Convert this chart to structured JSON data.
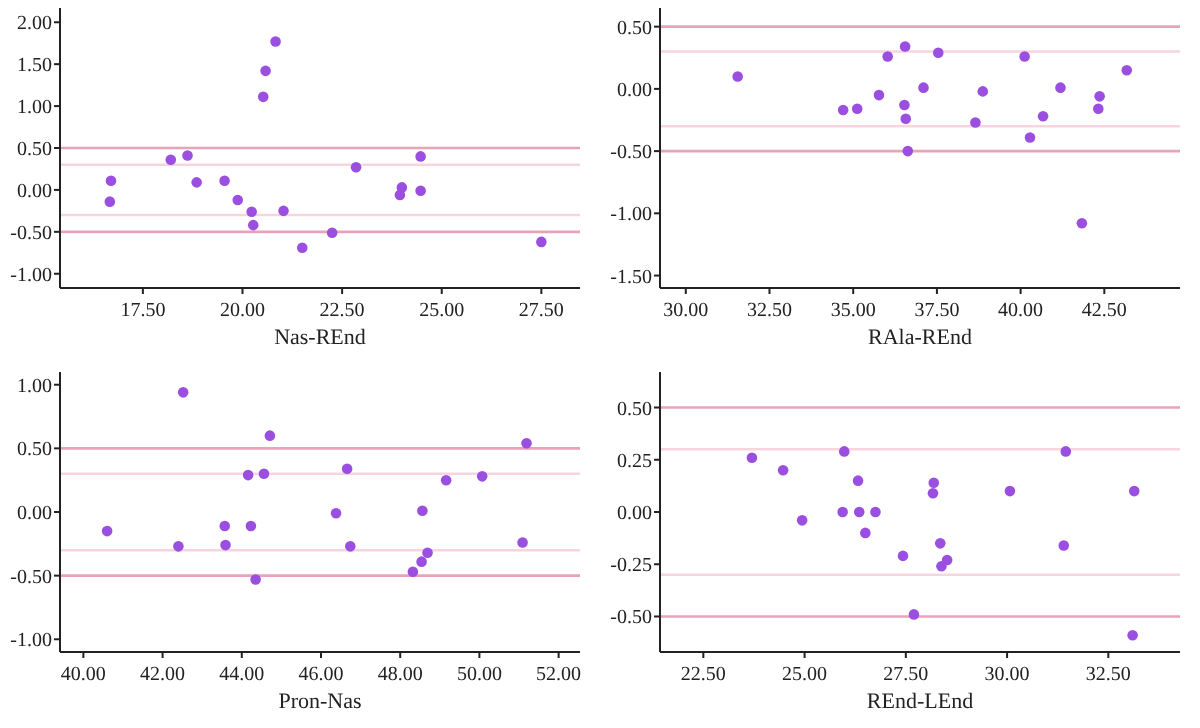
{
  "chart_data": [
    {
      "type": "scatter",
      "xlabel": "Nas-REnd",
      "marker": "circle",
      "grid": false,
      "xlim": [
        15.42,
        28.47
      ],
      "ylim": [
        -1.17,
        2.17
      ],
      "xticks": [
        {
          "value": 17.5,
          "label": "17.50"
        },
        {
          "value": 20,
          "label": "20.00"
        },
        {
          "value": 22.5,
          "label": "22.50"
        },
        {
          "value": 25,
          "label": "25.00"
        },
        {
          "value": 27.5,
          "label": "27.50"
        }
      ],
      "yticks": [
        {
          "value": -1,
          "label": "-1.00"
        },
        {
          "value": -0.5,
          "label": "-0.50"
        },
        {
          "value": 0,
          "label": "0.00"
        },
        {
          "value": 0.5,
          "label": "0.50"
        },
        {
          "value": 1,
          "label": "1.00"
        },
        {
          "value": 1.5,
          "label": "1.50"
        },
        {
          "value": 2,
          "label": "2.00"
        }
      ],
      "ref_lines": [
        {
          "axis": "y",
          "value": 0.5,
          "color": "#e9a3b8"
        },
        {
          "axis": "y",
          "value": 0.3,
          "color": "#f6d5df"
        },
        {
          "axis": "y",
          "value": -0.3,
          "color": "#f6d5df"
        },
        {
          "axis": "y",
          "value": -0.5,
          "color": "#e9a3b8"
        }
      ],
      "series": [
        {
          "color": "#9b4fe0",
          "x": [
            16.7,
            16.67,
            18.2,
            18.62,
            18.85,
            19.55,
            19.88,
            20.23,
            20.27,
            20.52,
            20.58,
            20.83,
            21.03,
            21.5,
            22.25,
            22.85,
            23.95,
            24.0,
            24.47,
            24.47,
            27.5
          ],
          "values": [
            0.11,
            -0.14,
            0.36,
            0.41,
            0.09,
            0.11,
            -0.12,
            -0.26,
            -0.42,
            1.11,
            1.42,
            1.77,
            -0.25,
            -0.69,
            -0.51,
            0.27,
            -0.06,
            0.03,
            0.4,
            -0.01,
            -0.62
          ]
        }
      ]
    },
    {
      "type": "scatter",
      "xlabel": "RAla-REnd",
      "marker": "circle",
      "grid": false,
      "xlim": [
        29.23,
        44.76
      ],
      "ylim": [
        -1.6,
        0.65
      ],
      "xticks": [
        {
          "value": 30,
          "label": "30.00"
        },
        {
          "value": 32.5,
          "label": "32.50"
        },
        {
          "value": 35,
          "label": "35.00"
        },
        {
          "value": 37.5,
          "label": "37.50"
        },
        {
          "value": 40,
          "label": "40.00"
        },
        {
          "value": 42.5,
          "label": "42.50"
        }
      ],
      "yticks": [
        {
          "value": -1.5,
          "label": "-1.50"
        },
        {
          "value": -1,
          "label": "-1.00"
        },
        {
          "value": -0.5,
          "label": "-0.50"
        },
        {
          "value": 0,
          "label": "0.00"
        },
        {
          "value": 0.5,
          "label": "0.50"
        }
      ],
      "ref_lines": [
        {
          "axis": "y",
          "value": 0.5,
          "color": "#e9a3b8"
        },
        {
          "axis": "y",
          "value": 0.3,
          "color": "#f6d5df"
        },
        {
          "axis": "y",
          "value": -0.3,
          "color": "#f6d5df"
        },
        {
          "axis": "y",
          "value": -0.5,
          "color": "#e9a3b8"
        }
      ],
      "series": [
        {
          "color": "#9b4fe0",
          "x": [
            31.55,
            34.7,
            35.12,
            35.77,
            36.03,
            36.53,
            36.55,
            36.57,
            36.63,
            37.1,
            37.54,
            38.65,
            38.87,
            40.12,
            40.28,
            40.67,
            41.19,
            41.83,
            42.32,
            42.36,
            43.17
          ],
          "values": [
            0.1,
            -0.17,
            -0.16,
            -0.05,
            0.26,
            -0.13,
            0.34,
            -0.24,
            -0.5,
            0.01,
            0.29,
            -0.27,
            -0.02,
            0.26,
            -0.39,
            -0.22,
            0.01,
            -1.08,
            -0.16,
            -0.06,
            0.15
          ]
        }
      ]
    },
    {
      "type": "scatter",
      "xlabel": "Pron-Nas",
      "marker": "circle",
      "grid": false,
      "xlim": [
        39.41,
        52.54
      ],
      "ylim": [
        -1.1,
        1.1
      ],
      "xticks": [
        {
          "value": 40,
          "label": "40.00"
        },
        {
          "value": 42,
          "label": "42.00"
        },
        {
          "value": 44,
          "label": "44.00"
        },
        {
          "value": 46,
          "label": "46.00"
        },
        {
          "value": 48,
          "label": "48.00"
        },
        {
          "value": 50,
          "label": "50.00"
        },
        {
          "value": 52,
          "label": "52.00"
        }
      ],
      "yticks": [
        {
          "value": -1,
          "label": "-1.00"
        },
        {
          "value": -0.5,
          "label": "-0.50"
        },
        {
          "value": 0,
          "label": "0.00"
        },
        {
          "value": 0.5,
          "label": "0.50"
        },
        {
          "value": 1,
          "label": "1.00"
        }
      ],
      "ref_lines": [
        {
          "axis": "y",
          "value": 0.5,
          "color": "#e9a3b8"
        },
        {
          "axis": "y",
          "value": 0.3,
          "color": "#f6d5df"
        },
        {
          "axis": "y",
          "value": -0.3,
          "color": "#f6d5df"
        },
        {
          "axis": "y",
          "value": -0.5,
          "color": "#e9a3b8"
        }
      ],
      "series": [
        {
          "color": "#9b4fe0",
          "x": [
            40.6,
            42.4,
            42.52,
            43.57,
            43.59,
            44.16,
            44.23,
            44.35,
            44.56,
            44.71,
            46.38,
            46.66,
            46.74,
            48.32,
            48.54,
            48.56,
            48.69,
            49.16,
            50.07,
            51.09,
            51.19
          ],
          "values": [
            -0.15,
            -0.27,
            0.94,
            -0.11,
            -0.26,
            0.29,
            -0.11,
            -0.53,
            0.3,
            0.6,
            -0.01,
            0.34,
            -0.27,
            -0.47,
            -0.39,
            0.01,
            -0.32,
            0.25,
            0.28,
            -0.24,
            0.54
          ]
        }
      ]
    },
    {
      "type": "scatter",
      "xlabel": "REnd-LEnd",
      "marker": "circle",
      "grid": false,
      "xlim": [
        21.43,
        34.27
      ],
      "ylim": [
        -0.67,
        0.67
      ],
      "xticks": [
        {
          "value": 22.5,
          "label": "22.50"
        },
        {
          "value": 25,
          "label": "25.00"
        },
        {
          "value": 27.5,
          "label": "27.50"
        },
        {
          "value": 30,
          "label": "30.00"
        },
        {
          "value": 32.5,
          "label": "32.50"
        }
      ],
      "yticks": [
        {
          "value": -0.5,
          "label": "-0.50"
        },
        {
          "value": -0.25,
          "label": "-0.25"
        },
        {
          "value": 0,
          "label": "0.00"
        },
        {
          "value": 0.25,
          "label": "0.25"
        },
        {
          "value": 0.5,
          "label": "0.50"
        }
      ],
      "ref_lines": [
        {
          "axis": "y",
          "value": 0.5,
          "color": "#e9a3b8"
        },
        {
          "axis": "y",
          "value": 0.3,
          "color": "#f6d5df"
        },
        {
          "axis": "y",
          "value": -0.3,
          "color": "#f6d5df"
        },
        {
          "axis": "y",
          "value": -0.5,
          "color": "#e9a3b8"
        }
      ],
      "series": [
        {
          "color": "#9b4fe0",
          "x": [
            23.7,
            24.47,
            24.94,
            25.94,
            25.98,
            26.32,
            26.35,
            26.5,
            26.75,
            27.43,
            27.7,
            28.17,
            28.19,
            28.35,
            28.38,
            28.52,
            30.07,
            31.4,
            31.45,
            33.14,
            33.1
          ],
          "values": [
            0.26,
            0.2,
            -0.04,
            0.0,
            0.29,
            0.15,
            0.0,
            -0.1,
            0.0,
            -0.21,
            -0.49,
            0.09,
            0.14,
            -0.15,
            -0.26,
            -0.23,
            0.1,
            -0.16,
            0.29,
            0.1,
            -0.59
          ]
        }
      ]
    }
  ]
}
